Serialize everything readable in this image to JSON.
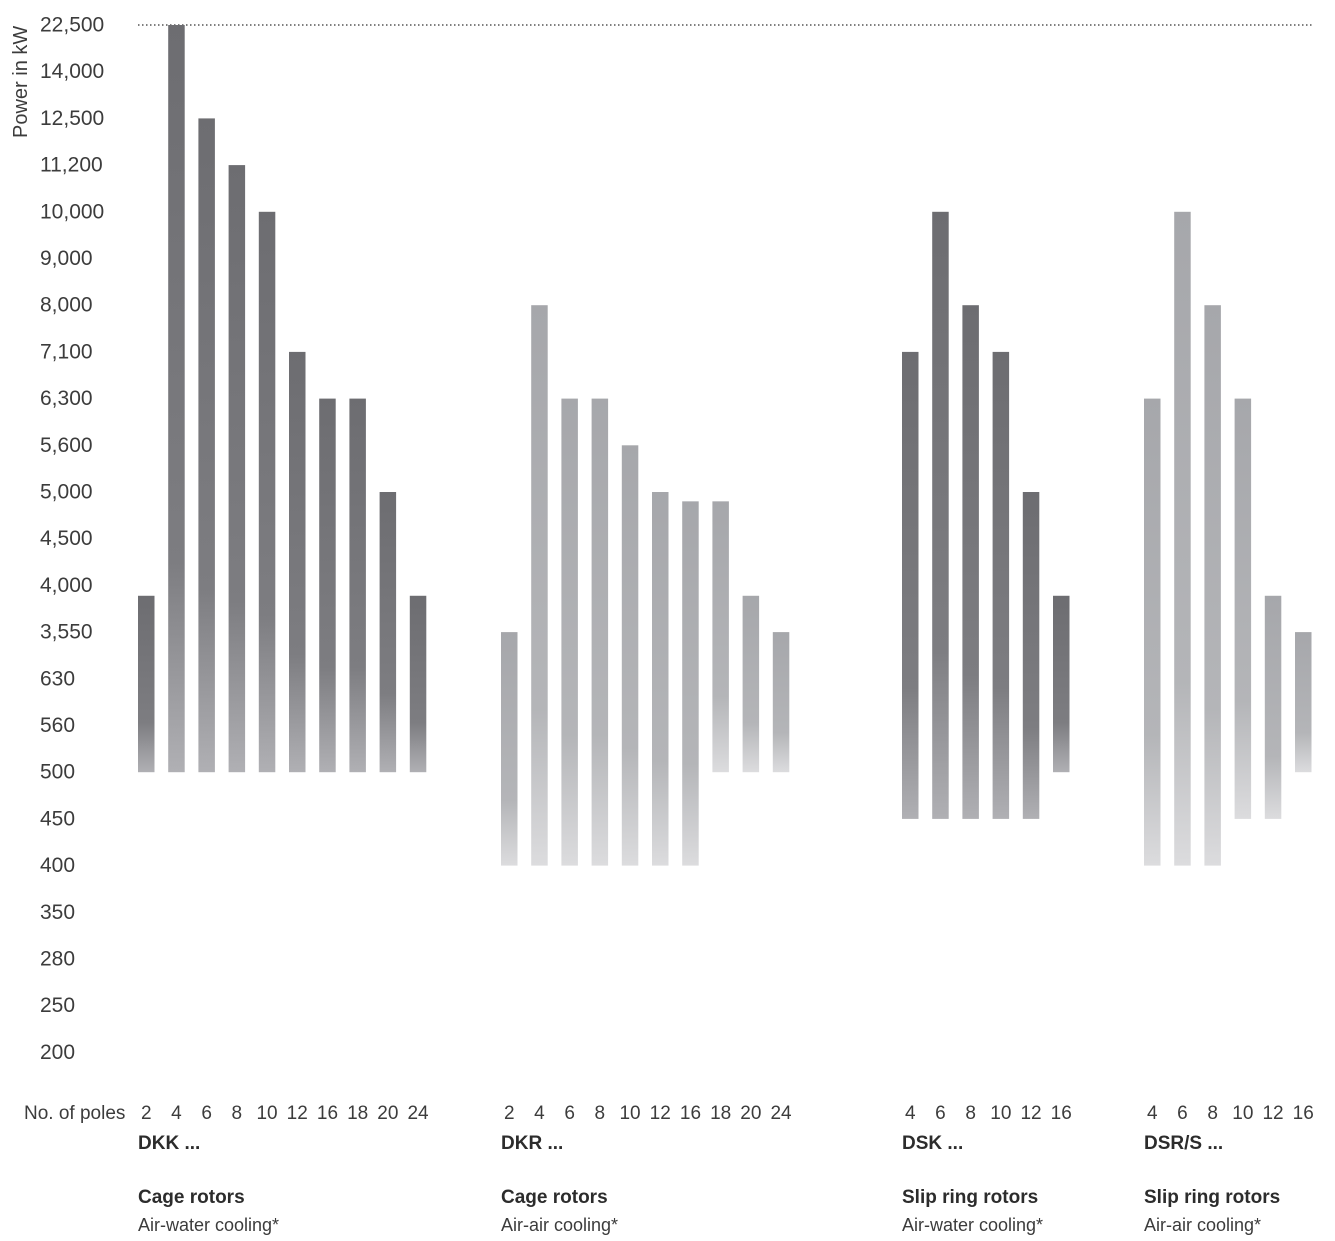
{
  "chart_data": {
    "type": "bar",
    "title": "",
    "ylabel": "Power in kW",
    "xlabel": "No. of poles",
    "y_scale": "categorical",
    "y_ticks": [
      "22,500",
      "14,000",
      "12,500",
      "11,200",
      "10,000",
      "9,000",
      "8,000",
      "7,100",
      "6,300",
      "5,600",
      "5,000",
      "4,500",
      "4,000",
      "3,550",
      "630",
      "560",
      "500",
      "450",
      "400",
      "350",
      "280",
      "250",
      "200"
    ],
    "reference_line": {
      "value": "22,500",
      "style": "dotted"
    },
    "colors": {
      "dark_top": "#6e6e72",
      "dark_bottom": "#aeaeb2",
      "light_top": "#a8a9ad",
      "light_bottom": "#dedee0",
      "text": "#3c3c3c"
    },
    "groups": [
      {
        "series": "DKK ...",
        "rotor": "Cage rotors",
        "cooling": "Air-water cooling*",
        "shade": "dark",
        "bars": [
          {
            "poles": "2",
            "min": 500,
            "max": 3900
          },
          {
            "poles": "4",
            "min": 500,
            "max": 22500
          },
          {
            "poles": "6",
            "min": 500,
            "max": 12500
          },
          {
            "poles": "8",
            "min": 500,
            "max": 11200
          },
          {
            "poles": "10",
            "min": 500,
            "max": 10000
          },
          {
            "poles": "12",
            "min": 500,
            "max": 7100
          },
          {
            "poles": "16",
            "min": 500,
            "max": 6300
          },
          {
            "poles": "18",
            "min": 500,
            "max": 6300
          },
          {
            "poles": "20",
            "min": 500,
            "max": 5000
          },
          {
            "poles": "24",
            "min": 500,
            "max": 3900
          }
        ]
      },
      {
        "series": "DKR ...",
        "rotor": "Cage rotors",
        "cooling": "Air-air cooling*",
        "shade": "light",
        "bars": [
          {
            "poles": "2",
            "min": 400,
            "max": 3550
          },
          {
            "poles": "4",
            "min": 400,
            "max": 8000
          },
          {
            "poles": "6",
            "min": 400,
            "max": 6300
          },
          {
            "poles": "8",
            "min": 400,
            "max": 6300
          },
          {
            "poles": "10",
            "min": 400,
            "max": 5600
          },
          {
            "poles": "12",
            "min": 400,
            "max": 5000
          },
          {
            "poles": "16",
            "min": 400,
            "max": 4900
          },
          {
            "poles": "18",
            "min": 500,
            "max": 4900
          },
          {
            "poles": "20",
            "min": 500,
            "max": 3900
          },
          {
            "poles": "24",
            "min": 500,
            "max": 3550
          }
        ]
      },
      {
        "series": "DSK ...",
        "rotor": "Slip ring rotors",
        "cooling": "Air-water cooling*",
        "shade": "dark",
        "bars": [
          {
            "poles": "4",
            "min": 450,
            "max": 7100
          },
          {
            "poles": "6",
            "min": 450,
            "max": 10000
          },
          {
            "poles": "8",
            "min": 450,
            "max": 8000
          },
          {
            "poles": "10",
            "min": 450,
            "max": 7100
          },
          {
            "poles": "12",
            "min": 450,
            "max": 5000
          },
          {
            "poles": "16",
            "min": 500,
            "max": 3900
          }
        ]
      },
      {
        "series": "DSR/S ...",
        "rotor": "Slip ring rotors",
        "cooling": "Air-air cooling*",
        "shade": "light",
        "bars": [
          {
            "poles": "4",
            "min": 400,
            "max": 6300
          },
          {
            "poles": "6",
            "min": 400,
            "max": 10000
          },
          {
            "poles": "8",
            "min": 400,
            "max": 8000
          },
          {
            "poles": "10",
            "min": 450,
            "max": 6300
          },
          {
            "poles": "12",
            "min": 450,
            "max": 3900
          },
          {
            "poles": "16",
            "min": 500,
            "max": 3550
          }
        ]
      }
    ]
  }
}
